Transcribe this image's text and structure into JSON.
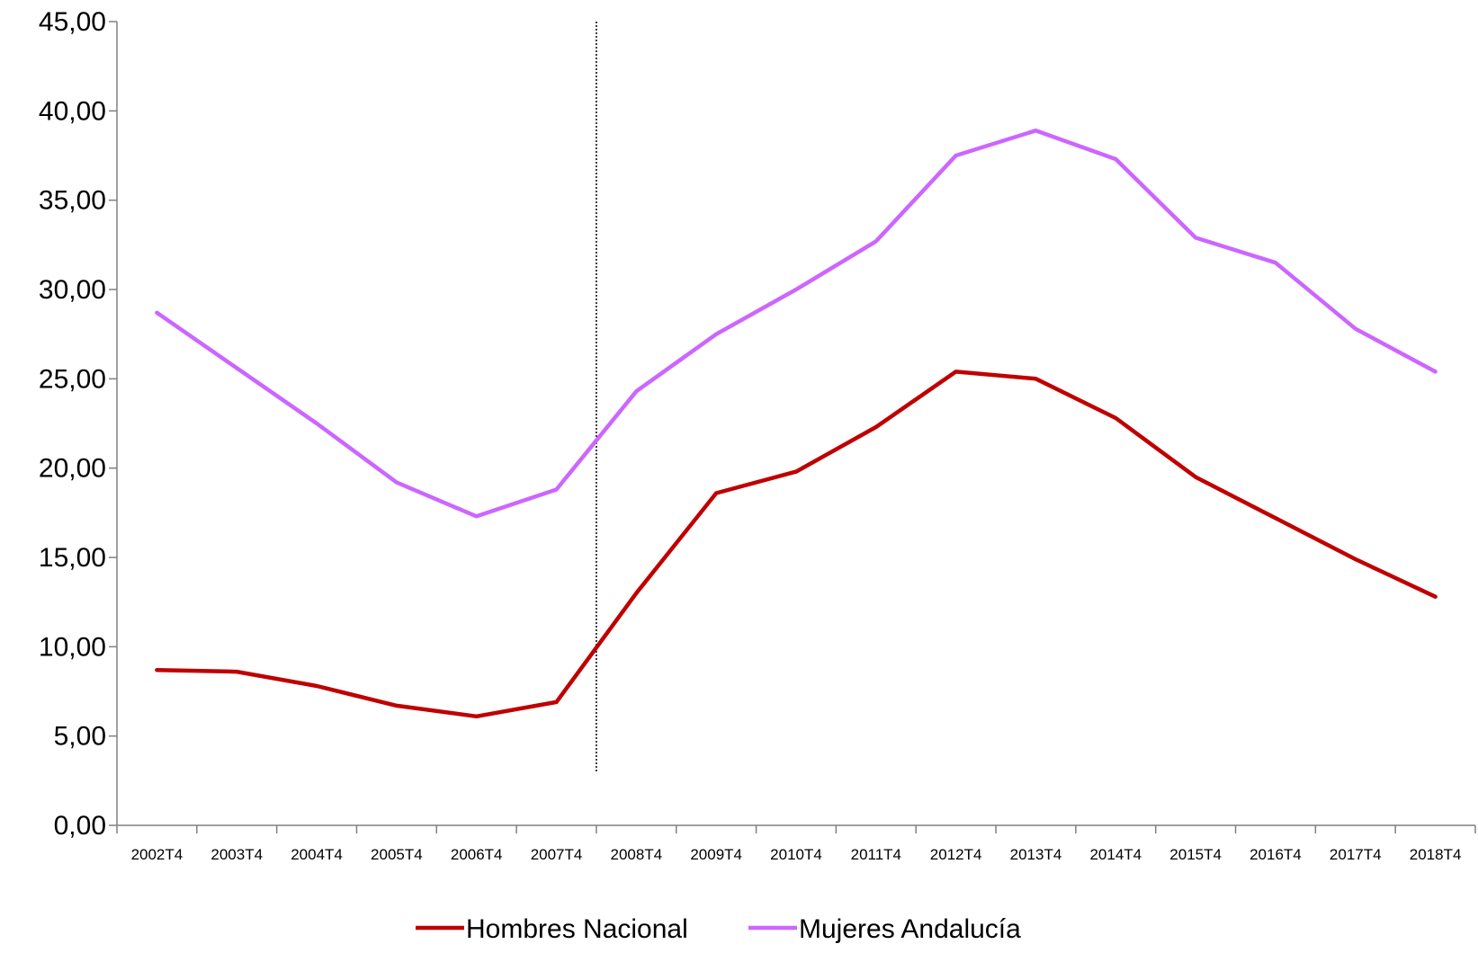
{
  "chart_data": {
    "type": "line",
    "title": "",
    "xlabel": "",
    "ylabel": "",
    "categories": [
      "2002T4",
      "2003T4",
      "2004T4",
      "2005T4",
      "2006T4",
      "2007T4",
      "2008T4",
      "2009T4",
      "2010T4",
      "2011T4",
      "2012T4",
      "2013T4",
      "2014T4",
      "2015T4",
      "2016T4",
      "2017T4",
      "2018T4"
    ],
    "ylim": [
      0,
      45
    ],
    "yticks": [
      "0,00",
      "5,00",
      "10,00",
      "15,00",
      "20,00",
      "25,00",
      "30,00",
      "35,00",
      "40,00",
      "45,00"
    ],
    "marker_line_after_category": "2007T4",
    "grid": false,
    "legend_position": "bottom",
    "series": [
      {
        "name": "Hombres Nacional",
        "color": "#c00000",
        "values": [
          8.7,
          8.6,
          7.8,
          6.7,
          6.1,
          6.9,
          13.0,
          18.6,
          19.8,
          22.3,
          25.4,
          25.0,
          22.8,
          19.5,
          17.2,
          14.9,
          12.8
        ]
      },
      {
        "name": "Mujeres Andalucía",
        "color": "#cc66ff",
        "values": [
          28.7,
          25.6,
          22.5,
          19.2,
          17.3,
          18.8,
          24.3,
          27.5,
          30.0,
          32.7,
          37.5,
          38.9,
          37.3,
          32.9,
          31.5,
          27.8,
          25.4
        ]
      }
    ]
  }
}
